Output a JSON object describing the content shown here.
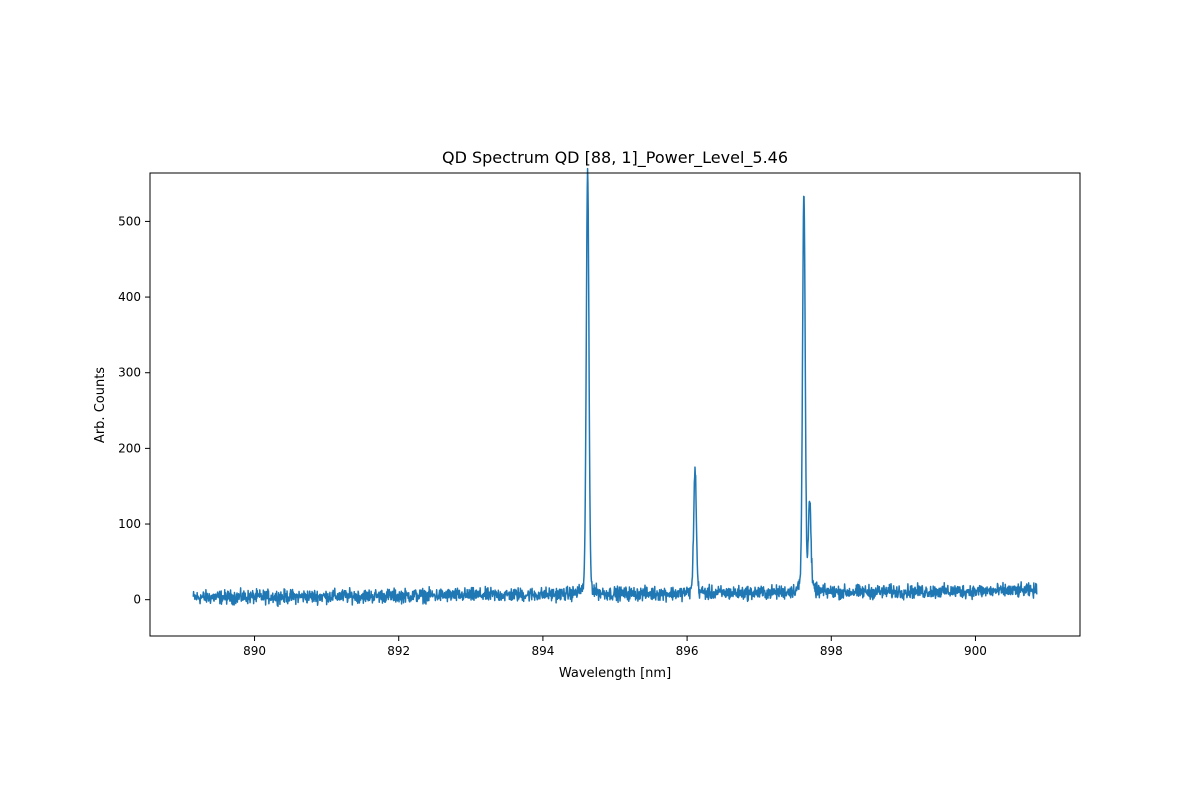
{
  "chart_data": {
    "type": "line",
    "title": "QD Spectrum QD [88, 1]_Power_Level_5.46",
    "xlabel": "Wavelength [nm]",
    "ylabel": "Arb. Counts",
    "xlim": [
      888.55,
      901.45
    ],
    "ylim": [
      -48,
      564
    ],
    "xticks": [
      890,
      892,
      894,
      896,
      898,
      900
    ],
    "yticks": [
      0,
      100,
      200,
      300,
      400,
      500
    ],
    "grid": false,
    "line_color": "#1f77b4",
    "series": [
      {
        "x_range": [
          889.15,
          900.85
        ],
        "baseline_left": 3,
        "baseline_right": 12,
        "noise_amplitude": 10,
        "peaks": [
          {
            "center": 894.62,
            "height": 535
          },
          {
            "center": 896.11,
            "height": 158
          },
          {
            "center": 897.62,
            "height": 505
          },
          {
            "center": 897.7,
            "height": 110
          }
        ]
      }
    ]
  }
}
